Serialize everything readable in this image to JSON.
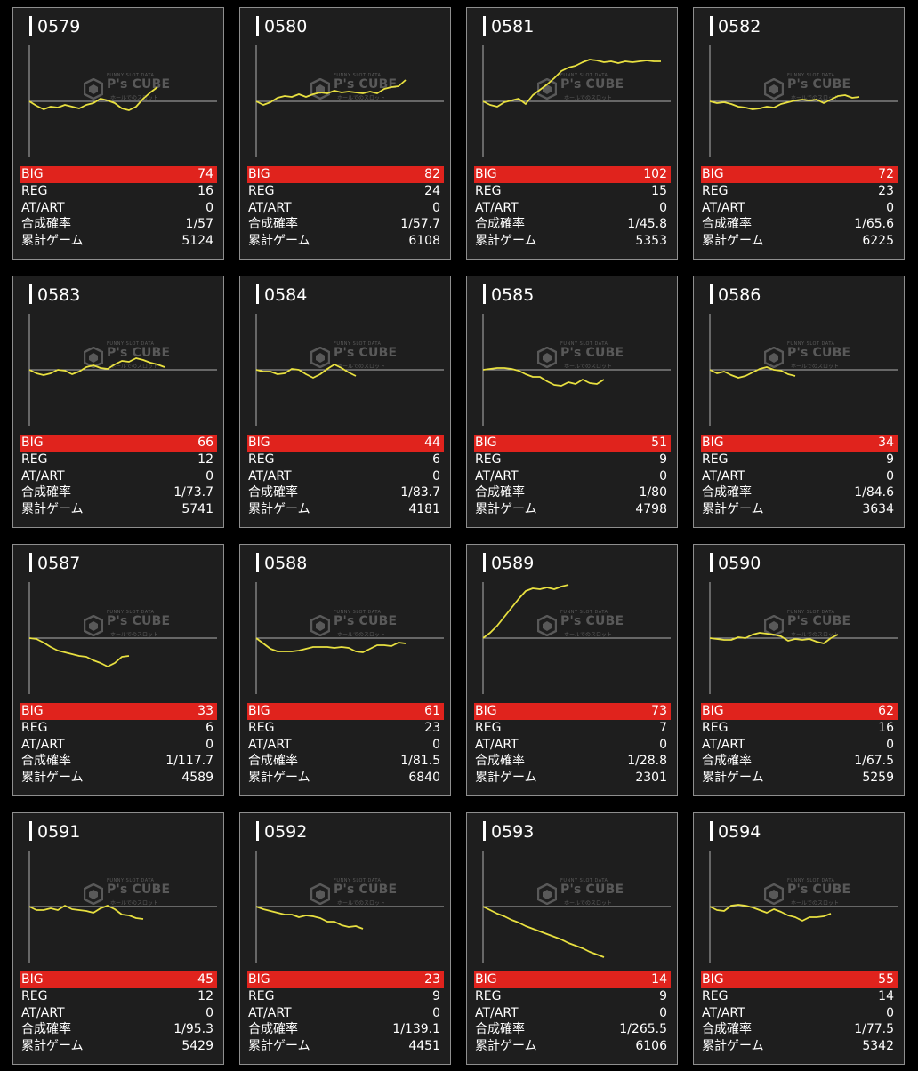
{
  "colors": {
    "background": "#000000",
    "card_background": "#1e1e1e",
    "card_border": "#8e8e8e",
    "big_row": "#e0231d",
    "graph_line": "#e8e040",
    "baseline": "#b0b0b0"
  },
  "watermark": {
    "top_text": "FUNNY SLOT DATA",
    "logo_text": "P's CUBE",
    "sub_text": "ホールでのスロット"
  },
  "labels": {
    "big": "BIG",
    "reg": "REG",
    "at_art": "AT/ART",
    "combined_prob": "合成確率",
    "total_games": "累計ゲーム"
  },
  "machines": [
    {
      "number": "0579",
      "big": "74",
      "reg": "16",
      "at_art": "0",
      "combined_prob": "1/57",
      "total_games": "5124",
      "graph": [
        [
          0,
          0
        ],
        [
          8,
          -5
        ],
        [
          16,
          -9
        ],
        [
          24,
          -6
        ],
        [
          32,
          -7
        ],
        [
          40,
          -4
        ],
        [
          48,
          -6
        ],
        [
          56,
          -8
        ],
        [
          64,
          -4
        ],
        [
          72,
          -2
        ],
        [
          80,
          3
        ],
        [
          88,
          1
        ],
        [
          96,
          -2
        ],
        [
          104,
          -8
        ],
        [
          112,
          -10
        ],
        [
          120,
          -6
        ],
        [
          128,
          3
        ],
        [
          136,
          10
        ],
        [
          144,
          16
        ]
      ]
    },
    {
      "number": "0580",
      "big": "82",
      "reg": "24",
      "at_art": "0",
      "combined_prob": "1/57.7",
      "total_games": "6108",
      "graph": [
        [
          0,
          0
        ],
        [
          8,
          -4
        ],
        [
          16,
          -1
        ],
        [
          24,
          4
        ],
        [
          32,
          6
        ],
        [
          40,
          5
        ],
        [
          48,
          8
        ],
        [
          56,
          5
        ],
        [
          64,
          8
        ],
        [
          72,
          10
        ],
        [
          80,
          9
        ],
        [
          88,
          12
        ],
        [
          96,
          10
        ],
        [
          104,
          11
        ],
        [
          112,
          10
        ],
        [
          120,
          9
        ],
        [
          128,
          11
        ],
        [
          136,
          9
        ],
        [
          144,
          14
        ],
        [
          152,
          16
        ],
        [
          160,
          17
        ],
        [
          168,
          24
        ]
      ]
    },
    {
      "number": "0581",
      "big": "102",
      "reg": "15",
      "at_art": "0",
      "combined_prob": "1/45.8",
      "total_games": "5353",
      "graph": [
        [
          0,
          0
        ],
        [
          8,
          -4
        ],
        [
          16,
          -6
        ],
        [
          24,
          -1
        ],
        [
          32,
          1
        ],
        [
          40,
          3
        ],
        [
          48,
          -3
        ],
        [
          56,
          7
        ],
        [
          64,
          13
        ],
        [
          72,
          19
        ],
        [
          80,
          26
        ],
        [
          88,
          34
        ],
        [
          96,
          38
        ],
        [
          104,
          40
        ],
        [
          112,
          44
        ],
        [
          120,
          47
        ],
        [
          128,
          46
        ],
        [
          136,
          44
        ],
        [
          144,
          45
        ],
        [
          152,
          43
        ],
        [
          160,
          45
        ],
        [
          168,
          44
        ],
        [
          176,
          45
        ],
        [
          184,
          46
        ],
        [
          192,
          45
        ],
        [
          200,
          45
        ]
      ]
    },
    {
      "number": "0582",
      "big": "72",
      "reg": "23",
      "at_art": "0",
      "combined_prob": "1/65.6",
      "total_games": "6225",
      "graph": [
        [
          0,
          0
        ],
        [
          8,
          -2
        ],
        [
          16,
          -1
        ],
        [
          24,
          -3
        ],
        [
          32,
          -6
        ],
        [
          40,
          -7
        ],
        [
          48,
          -9
        ],
        [
          56,
          -8
        ],
        [
          64,
          -6
        ],
        [
          72,
          -7
        ],
        [
          80,
          -3
        ],
        [
          88,
          -1
        ],
        [
          96,
          1
        ],
        [
          104,
          2
        ],
        [
          112,
          1
        ],
        [
          120,
          2
        ],
        [
          128,
          -2
        ],
        [
          136,
          2
        ],
        [
          144,
          6
        ],
        [
          152,
          7
        ],
        [
          160,
          4
        ],
        [
          168,
          5
        ]
      ]
    },
    {
      "number": "0583",
      "big": "66",
      "reg": "12",
      "at_art": "0",
      "combined_prob": "1/73.7",
      "total_games": "5741",
      "graph": [
        [
          0,
          0
        ],
        [
          8,
          -4
        ],
        [
          16,
          -6
        ],
        [
          24,
          -4
        ],
        [
          32,
          0
        ],
        [
          40,
          -1
        ],
        [
          48,
          -5
        ],
        [
          56,
          -2
        ],
        [
          64,
          3
        ],
        [
          72,
          5
        ],
        [
          80,
          2
        ],
        [
          88,
          1
        ],
        [
          96,
          6
        ],
        [
          104,
          10
        ],
        [
          112,
          9
        ],
        [
          120,
          13
        ],
        [
          128,
          11
        ],
        [
          136,
          8
        ],
        [
          144,
          6
        ],
        [
          152,
          3
        ]
      ]
    },
    {
      "number": "0584",
      "big": "44",
      "reg": "6",
      "at_art": "0",
      "combined_prob": "1/83.7",
      "total_games": "4181",
      "graph": [
        [
          0,
          0
        ],
        [
          8,
          -2
        ],
        [
          16,
          -2
        ],
        [
          24,
          -5
        ],
        [
          32,
          -4
        ],
        [
          40,
          1
        ],
        [
          48,
          0
        ],
        [
          56,
          -5
        ],
        [
          64,
          -9
        ],
        [
          72,
          -5
        ],
        [
          80,
          1
        ],
        [
          88,
          6
        ],
        [
          96,
          2
        ],
        [
          104,
          -3
        ],
        [
          112,
          -7
        ]
      ]
    },
    {
      "number": "0585",
      "big": "51",
      "reg": "9",
      "at_art": "0",
      "combined_prob": "1/80",
      "total_games": "4798",
      "graph": [
        [
          0,
          0
        ],
        [
          8,
          1
        ],
        [
          16,
          2
        ],
        [
          24,
          2
        ],
        [
          32,
          1
        ],
        [
          40,
          -1
        ],
        [
          48,
          -5
        ],
        [
          56,
          -8
        ],
        [
          64,
          -8
        ],
        [
          72,
          -13
        ],
        [
          80,
          -17
        ],
        [
          88,
          -18
        ],
        [
          96,
          -14
        ],
        [
          104,
          -16
        ],
        [
          112,
          -11
        ],
        [
          120,
          -15
        ],
        [
          128,
          -16
        ],
        [
          136,
          -11
        ]
      ]
    },
    {
      "number": "0586",
      "big": "34",
      "reg": "9",
      "at_art": "0",
      "combined_prob": "1/84.6",
      "total_games": "3634",
      "graph": [
        [
          0,
          0
        ],
        [
          8,
          -4
        ],
        [
          16,
          -2
        ],
        [
          24,
          -6
        ],
        [
          32,
          -9
        ],
        [
          40,
          -7
        ],
        [
          48,
          -3
        ],
        [
          56,
          1
        ],
        [
          64,
          3
        ],
        [
          72,
          0
        ],
        [
          80,
          -1
        ],
        [
          88,
          -5
        ],
        [
          96,
          -7
        ]
      ]
    },
    {
      "number": "0587",
      "big": "33",
      "reg": "6",
      "at_art": "0",
      "combined_prob": "1/117.7",
      "total_games": "4589",
      "graph": [
        [
          0,
          0
        ],
        [
          8,
          -1
        ],
        [
          16,
          -5
        ],
        [
          24,
          -10
        ],
        [
          32,
          -14
        ],
        [
          40,
          -16
        ],
        [
          48,
          -18
        ],
        [
          56,
          -20
        ],
        [
          64,
          -21
        ],
        [
          72,
          -25
        ],
        [
          80,
          -28
        ],
        [
          88,
          -32
        ],
        [
          96,
          -28
        ],
        [
          104,
          -21
        ],
        [
          112,
          -20
        ]
      ]
    },
    {
      "number": "0588",
      "big": "61",
      "reg": "23",
      "at_art": "0",
      "combined_prob": "1/81.5",
      "total_games": "6840",
      "graph": [
        [
          0,
          0
        ],
        [
          8,
          -6
        ],
        [
          16,
          -12
        ],
        [
          24,
          -15
        ],
        [
          32,
          -15
        ],
        [
          40,
          -15
        ],
        [
          48,
          -14
        ],
        [
          56,
          -12
        ],
        [
          64,
          -10
        ],
        [
          72,
          -10
        ],
        [
          80,
          -10
        ],
        [
          88,
          -11
        ],
        [
          96,
          -10
        ],
        [
          104,
          -11
        ],
        [
          112,
          -15
        ],
        [
          120,
          -16
        ],
        [
          128,
          -12
        ],
        [
          136,
          -8
        ],
        [
          144,
          -8
        ],
        [
          152,
          -9
        ],
        [
          160,
          -5
        ],
        [
          168,
          -6
        ]
      ]
    },
    {
      "number": "0589",
      "big": "73",
      "reg": "7",
      "at_art": "0",
      "combined_prob": "1/28.8",
      "total_games": "2301",
      "graph": [
        [
          0,
          0
        ],
        [
          8,
          6
        ],
        [
          16,
          14
        ],
        [
          24,
          24
        ],
        [
          32,
          34
        ],
        [
          40,
          44
        ],
        [
          48,
          53
        ],
        [
          56,
          56
        ],
        [
          64,
          55
        ],
        [
          72,
          57
        ],
        [
          80,
          55
        ],
        [
          88,
          58
        ],
        [
          96,
          60
        ]
      ]
    },
    {
      "number": "0590",
      "big": "62",
      "reg": "16",
      "at_art": "0",
      "combined_prob": "1/67.5",
      "total_games": "5259",
      "graph": [
        [
          0,
          0
        ],
        [
          8,
          -1
        ],
        [
          16,
          -2
        ],
        [
          24,
          -2
        ],
        [
          32,
          1
        ],
        [
          40,
          0
        ],
        [
          48,
          4
        ],
        [
          56,
          6
        ],
        [
          64,
          5
        ],
        [
          72,
          4
        ],
        [
          80,
          2
        ],
        [
          88,
          -3
        ],
        [
          96,
          -1
        ],
        [
          104,
          -2
        ],
        [
          112,
          -1
        ],
        [
          120,
          -4
        ],
        [
          128,
          -6
        ],
        [
          136,
          0
        ],
        [
          144,
          4
        ]
      ]
    },
    {
      "number": "0591",
      "big": "45",
      "reg": "12",
      "at_art": "0",
      "combined_prob": "1/95.3",
      "total_games": "5429",
      "graph": [
        [
          0,
          0
        ],
        [
          8,
          -4
        ],
        [
          16,
          -4
        ],
        [
          24,
          -2
        ],
        [
          32,
          -4
        ],
        [
          40,
          1
        ],
        [
          48,
          -3
        ],
        [
          56,
          -4
        ],
        [
          64,
          -5
        ],
        [
          72,
          -7
        ],
        [
          80,
          -2
        ],
        [
          88,
          1
        ],
        [
          96,
          -3
        ],
        [
          104,
          -9
        ],
        [
          112,
          -10
        ],
        [
          120,
          -13
        ],
        [
          128,
          -14
        ]
      ]
    },
    {
      "number": "0592",
      "big": "23",
      "reg": "9",
      "at_art": "0",
      "combined_prob": "1/139.1",
      "total_games": "4451",
      "graph": [
        [
          0,
          0
        ],
        [
          8,
          -3
        ],
        [
          16,
          -5
        ],
        [
          24,
          -7
        ],
        [
          32,
          -9
        ],
        [
          40,
          -9
        ],
        [
          48,
          -12
        ],
        [
          56,
          -10
        ],
        [
          64,
          -11
        ],
        [
          72,
          -13
        ],
        [
          80,
          -17
        ],
        [
          88,
          -17
        ],
        [
          96,
          -21
        ],
        [
          104,
          -23
        ],
        [
          112,
          -22
        ],
        [
          120,
          -25
        ]
      ]
    },
    {
      "number": "0593",
      "big": "14",
      "reg": "9",
      "at_art": "0",
      "combined_prob": "1/265.5",
      "total_games": "6106",
      "graph": [
        [
          0,
          0
        ],
        [
          8,
          -4
        ],
        [
          16,
          -8
        ],
        [
          24,
          -11
        ],
        [
          32,
          -15
        ],
        [
          40,
          -18
        ],
        [
          48,
          -22
        ],
        [
          56,
          -25
        ],
        [
          64,
          -28
        ],
        [
          72,
          -31
        ],
        [
          80,
          -34
        ],
        [
          88,
          -37
        ],
        [
          96,
          -41
        ],
        [
          104,
          -44
        ],
        [
          112,
          -47
        ],
        [
          120,
          -51
        ],
        [
          128,
          -54
        ],
        [
          136,
          -57
        ]
      ]
    },
    {
      "number": "0594",
      "big": "55",
      "reg": "14",
      "at_art": "0",
      "combined_prob": "1/77.5",
      "total_games": "5342",
      "graph": [
        [
          0,
          0
        ],
        [
          8,
          -4
        ],
        [
          16,
          -5
        ],
        [
          24,
          1
        ],
        [
          32,
          2
        ],
        [
          40,
          1
        ],
        [
          48,
          -1
        ],
        [
          56,
          -4
        ],
        [
          64,
          -7
        ],
        [
          72,
          -3
        ],
        [
          80,
          -6
        ],
        [
          88,
          -10
        ],
        [
          96,
          -12
        ],
        [
          104,
          -16
        ],
        [
          112,
          -12
        ],
        [
          120,
          -12
        ],
        [
          128,
          -11
        ],
        [
          136,
          -8
        ]
      ]
    }
  ]
}
